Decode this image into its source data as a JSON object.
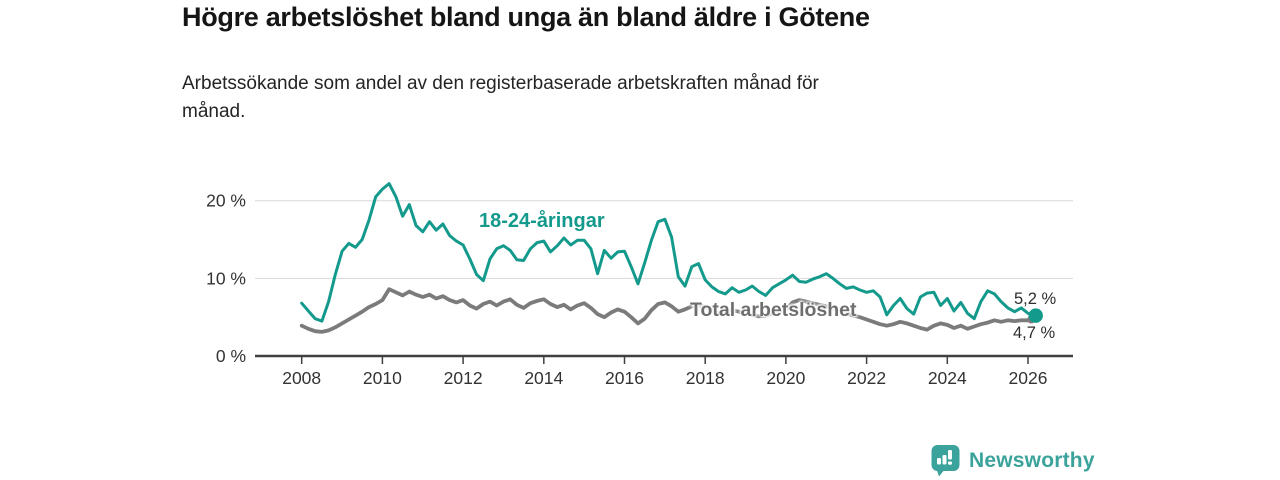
{
  "header": {
    "title": "Högre arbetslöshet bland unga än bland äldre i Götene",
    "subtitle": "Arbetssökande som andel av den registerbaserade arbetskraften månad för månad.",
    "subtitle_lines": [
      "Arbetssökande som andel av den registerbaserade arbetskraften månad för",
      "månad."
    ]
  },
  "chart_data": {
    "type": "line",
    "title": "Högre arbetslöshet bland unga än bland äldre i Götene",
    "xlabel": "",
    "ylabel": "",
    "grid": "horizontal",
    "x_axis": {
      "unit": "year",
      "lim": [
        2006.9,
        2027.1
      ],
      "ticks": [
        2008,
        2010,
        2012,
        2014,
        2016,
        2018,
        2020,
        2022,
        2024,
        2026
      ]
    },
    "y_axis": {
      "unit": "%",
      "lim": [
        0,
        24
      ],
      "ticks": [
        0,
        10,
        20
      ],
      "tick_labels": [
        "0 %",
        "10 %",
        "20 %"
      ]
    },
    "series": [
      {
        "id": "young",
        "name": "18-24-åringar",
        "color": "#149a8c",
        "stroke_width": 3,
        "start": 2008.0,
        "step_years": 0.1666667,
        "end_value": 5.2,
        "end_label": "5,2 %",
        "values": [
          6.8,
          5.8,
          4.8,
          4.5,
          7.0,
          10.5,
          13.5,
          14.5,
          14.0,
          15.0,
          17.5,
          20.5,
          21.5,
          22.2,
          20.5,
          18.0,
          19.5,
          16.8,
          16.0,
          17.3,
          16.2,
          17.0,
          15.5,
          14.8,
          14.3,
          12.5,
          10.5,
          9.7,
          12.5,
          13.8,
          14.2,
          13.6,
          12.4,
          12.3,
          13.8,
          14.6,
          14.8,
          13.4,
          14.2,
          15.2,
          14.3,
          14.9,
          14.9,
          13.8,
          10.6,
          13.6,
          12.6,
          13.4,
          13.5,
          11.5,
          9.3,
          12.0,
          14.9,
          17.3,
          17.6,
          15.3,
          10.2,
          9.0,
          11.5,
          11.9,
          9.8,
          8.9,
          8.3,
          8.0,
          8.8,
          8.2,
          8.5,
          9.0,
          8.3,
          7.8,
          8.8,
          9.3,
          9.8,
          10.4,
          9.6,
          9.5,
          9.9,
          10.2,
          10.6,
          10.0,
          9.3,
          8.7,
          8.9,
          8.5,
          8.2,
          8.4,
          7.6,
          5.3,
          6.5,
          7.4,
          6.1,
          5.4,
          7.6,
          8.1,
          8.2,
          6.5,
          7.4,
          5.8,
          6.9,
          5.5,
          4.8,
          7.0,
          8.4,
          8.0,
          7.0,
          6.2,
          5.7,
          6.2,
          5.5,
          5.2
        ]
      },
      {
        "id": "total",
        "name": "Total arbetslöshet",
        "color": "#7b7b7b",
        "stroke_width": 3.8,
        "start": 2008.0,
        "step_years": 0.1666667,
        "end_value": 4.7,
        "end_label": "4,7 %",
        "values": [
          3.9,
          3.5,
          3.2,
          3.1,
          3.3,
          3.7,
          4.2,
          4.7,
          5.2,
          5.7,
          6.3,
          6.7,
          7.2,
          8.6,
          8.2,
          7.8,
          8.3,
          7.9,
          7.6,
          7.9,
          7.4,
          7.7,
          7.2,
          6.9,
          7.2,
          6.5,
          6.1,
          6.7,
          7.0,
          6.5,
          7.0,
          7.3,
          6.6,
          6.2,
          6.8,
          7.1,
          7.3,
          6.7,
          6.3,
          6.6,
          6.0,
          6.5,
          6.8,
          6.2,
          5.4,
          5.0,
          5.6,
          6.0,
          5.7,
          5.0,
          4.2,
          4.8,
          5.9,
          6.7,
          6.9,
          6.4,
          5.7,
          6.0,
          6.4,
          6.6,
          6.3,
          5.9,
          5.5,
          5.6,
          5.9,
          5.7,
          5.5,
          5.3,
          5.1,
          5.2,
          5.5,
          5.8,
          6.0,
          6.9,
          7.2,
          7.0,
          6.8,
          6.6,
          6.4,
          6.1,
          5.8,
          5.5,
          5.2,
          5.0,
          4.7,
          4.4,
          4.1,
          3.9,
          4.1,
          4.4,
          4.2,
          3.9,
          3.6,
          3.4,
          3.9,
          4.2,
          4.0,
          3.6,
          3.9,
          3.5,
          3.8,
          4.1,
          4.3,
          4.6,
          4.4,
          4.6,
          4.5,
          4.6,
          4.6,
          4.7
        ]
      }
    ],
    "legend": "inline-labels"
  },
  "footer": {
    "brand": "Newsworthy"
  }
}
